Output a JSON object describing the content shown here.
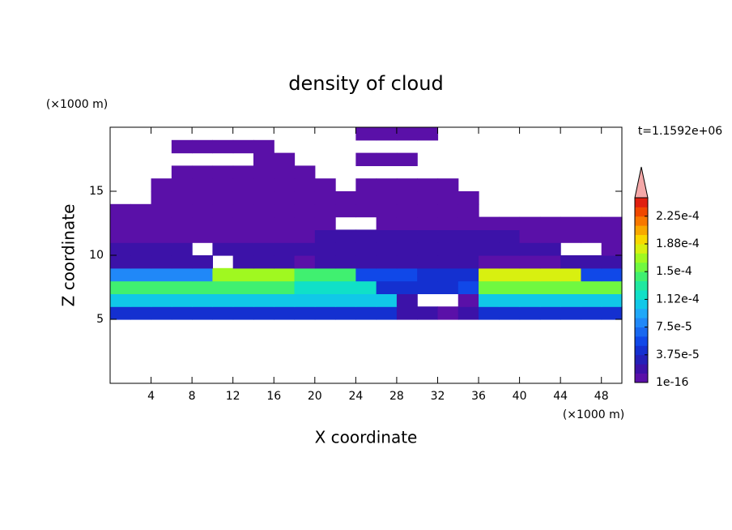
{
  "chart_data": {
    "type": "contour",
    "title": "density of cloud",
    "x_label": "X coordinate",
    "y_label": "Z coordinate",
    "x_unit": "(×1000 m)",
    "y_unit": "(×1000 m)",
    "annotation": "t=1.1592e+06",
    "xlim": [
      0,
      50
    ],
    "ylim": [
      0,
      20
    ],
    "xticks": [
      4,
      8,
      12,
      16,
      20,
      24,
      28,
      32,
      36,
      40,
      44,
      48
    ],
    "yticks": [
      5,
      10,
      15
    ],
    "x": [
      1,
      3,
      5,
      7,
      9,
      11,
      13,
      15,
      17,
      19,
      21,
      23,
      25,
      27,
      29,
      31,
      33,
      35,
      37,
      39,
      41,
      43,
      45,
      47,
      49
    ],
    "z": [
      0.5,
      1.5,
      2.5,
      3.5,
      4.5,
      5.5,
      6.5,
      7.5,
      8.5,
      9.5,
      10.5,
      11.5,
      12.5,
      13.5,
      14.5,
      15.5,
      16.5,
      17.5,
      18.5,
      19.5
    ],
    "values": [
      [
        null,
        null,
        null,
        null,
        null,
        null,
        null,
        null,
        null,
        null,
        null,
        null,
        null,
        null,
        null,
        null,
        null,
        null,
        null,
        null,
        null,
        null,
        null,
        null,
        null
      ],
      [
        null,
        null,
        null,
        null,
        null,
        null,
        null,
        null,
        null,
        null,
        null,
        null,
        null,
        null,
        null,
        null,
        null,
        null,
        null,
        null,
        null,
        null,
        null,
        null,
        null
      ],
      [
        null,
        null,
        null,
        null,
        null,
        null,
        null,
        null,
        null,
        null,
        null,
        null,
        null,
        null,
        null,
        null,
        null,
        null,
        null,
        null,
        null,
        null,
        null,
        null,
        null
      ],
      [
        null,
        null,
        null,
        null,
        null,
        null,
        null,
        null,
        null,
        null,
        null,
        null,
        null,
        null,
        null,
        null,
        null,
        null,
        null,
        null,
        null,
        null,
        null,
        null,
        null
      ],
      [
        null,
        null,
        null,
        null,
        null,
        null,
        null,
        null,
        null,
        null,
        null,
        null,
        null,
        null,
        null,
        null,
        null,
        null,
        null,
        null,
        null,
        null,
        null,
        null,
        null
      ],
      [
        4e-05,
        4e-05,
        4e-05,
        4e-05,
        4e-05,
        4e-05,
        4e-05,
        4e-05,
        4e-05,
        4e-05,
        4e-05,
        4e-05,
        4e-05,
        4e-05,
        2e-05,
        2e-05,
        5e-06,
        2e-05,
        4e-05,
        4e-05,
        4e-05,
        4e-05,
        4e-05,
        4e-05,
        4e-05
      ],
      [
        0.0001,
        0.0001,
        0.0001,
        0.0001,
        0.0001,
        0.0001,
        0.0001,
        0.0001,
        0.0001,
        0.0001,
        0.0001,
        0.0001,
        0.0001,
        0.0001,
        2e-05,
        null,
        null,
        5e-06,
        0.0001,
        0.0001,
        0.0001,
        0.0001,
        0.0001,
        0.0001,
        0.0001
      ],
      [
        0.00014,
        0.00014,
        0.00014,
        0.00014,
        0.00014,
        0.00014,
        0.00014,
        0.00014,
        0.00014,
        0.00012,
        0.00012,
        0.00012,
        0.00012,
        4e-05,
        4e-05,
        4e-05,
        4e-05,
        6e-05,
        0.00015,
        0.00015,
        0.00015,
        0.00015,
        0.00015,
        0.00015,
        0.00015
      ],
      [
        8e-05,
        8e-05,
        8e-05,
        8e-05,
        8e-05,
        0.00017,
        0.00017,
        0.00017,
        0.00017,
        0.00014,
        0.00014,
        0.00014,
        6e-05,
        6e-05,
        6e-05,
        4e-05,
        4e-05,
        4e-05,
        0.00018,
        0.00018,
        0.00018,
        0.00018,
        0.00018,
        6e-05,
        6e-05
      ],
      [
        2e-05,
        2e-05,
        2e-05,
        2e-05,
        2e-05,
        null,
        2e-05,
        2e-05,
        2e-05,
        5e-06,
        2e-05,
        2e-05,
        2e-05,
        2e-05,
        2e-05,
        2e-05,
        2e-05,
        2e-05,
        5e-06,
        5e-06,
        5e-06,
        5e-06,
        2e-05,
        2e-05,
        2e-05
      ],
      [
        2e-05,
        2e-05,
        2e-05,
        2e-05,
        null,
        2e-05,
        2e-05,
        2e-05,
        2e-05,
        2e-05,
        2e-05,
        2e-05,
        2e-05,
        2e-05,
        2e-05,
        2e-05,
        2e-05,
        2e-05,
        2e-05,
        2e-05,
        2e-05,
        2e-05,
        null,
        null,
        5e-06
      ],
      [
        5e-06,
        5e-06,
        5e-06,
        5e-06,
        5e-06,
        5e-06,
        5e-06,
        5e-06,
        5e-06,
        5e-06,
        2e-05,
        2e-05,
        2e-05,
        2e-05,
        2e-05,
        2e-05,
        2e-05,
        2e-05,
        2e-05,
        2e-05,
        5e-06,
        5e-06,
        5e-06,
        5e-06,
        5e-06
      ],
      [
        5e-06,
        5e-06,
        5e-06,
        5e-06,
        5e-06,
        5e-06,
        5e-06,
        5e-06,
        5e-06,
        5e-06,
        5e-06,
        null,
        null,
        5e-06,
        5e-06,
        5e-06,
        5e-06,
        5e-06,
        5e-06,
        5e-06,
        5e-06,
        5e-06,
        5e-06,
        5e-06,
        5e-06
      ],
      [
        5e-06,
        5e-06,
        5e-06,
        5e-06,
        5e-06,
        5e-06,
        5e-06,
        5e-06,
        5e-06,
        5e-06,
        5e-06,
        5e-06,
        5e-06,
        5e-06,
        5e-06,
        5e-06,
        5e-06,
        5e-06,
        null,
        null,
        null,
        null,
        null,
        null,
        null
      ],
      [
        null,
        null,
        5e-06,
        5e-06,
        5e-06,
        5e-06,
        5e-06,
        5e-06,
        5e-06,
        5e-06,
        5e-06,
        5e-06,
        5e-06,
        5e-06,
        5e-06,
        5e-06,
        5e-06,
        5e-06,
        null,
        null,
        null,
        null,
        null,
        null,
        null
      ],
      [
        null,
        null,
        5e-06,
        5e-06,
        5e-06,
        5e-06,
        5e-06,
        5e-06,
        5e-06,
        5e-06,
        5e-06,
        null,
        5e-06,
        5e-06,
        5e-06,
        5e-06,
        5e-06,
        null,
        null,
        null,
        null,
        null,
        null,
        null,
        null
      ],
      [
        null,
        null,
        null,
        5e-06,
        5e-06,
        5e-06,
        5e-06,
        5e-06,
        5e-06,
        5e-06,
        null,
        null,
        null,
        null,
        null,
        null,
        null,
        null,
        null,
        null,
        null,
        null,
        null,
        null,
        null
      ],
      [
        null,
        null,
        null,
        null,
        null,
        null,
        null,
        5e-06,
        5e-06,
        null,
        null,
        null,
        5e-06,
        5e-06,
        5e-06,
        null,
        null,
        null,
        null,
        null,
        null,
        null,
        null,
        null,
        null
      ],
      [
        null,
        null,
        null,
        5e-06,
        5e-06,
        5e-06,
        5e-06,
        5e-06,
        null,
        null,
        null,
        null,
        null,
        null,
        null,
        null,
        null,
        null,
        null,
        null,
        null,
        null,
        null,
        null,
        null
      ],
      [
        null,
        null,
        null,
        null,
        null,
        null,
        null,
        null,
        null,
        null,
        null,
        null,
        5e-06,
        5e-06,
        5e-06,
        5e-06,
        null,
        null,
        null,
        null,
        null,
        null,
        null,
        null,
        null
      ]
    ],
    "colorbar": {
      "clim": [
        1e-16,
        0.00025
      ],
      "levels": [
        1e-16,
        1.25e-05,
        2.5e-05,
        3.75e-05,
        5e-05,
        6.25e-05,
        7.5e-05,
        8.75e-05,
        0.0001,
        0.0001125,
        0.000125,
        0.0001375,
        0.00015,
        0.0001625,
        0.000175,
        0.0001875,
        0.0002,
        0.0002125,
        0.000225,
        0.0002375
      ],
      "colors": [
        "#5a10a8",
        "#3c12a8",
        "#2420b8",
        "#1430d0",
        "#1048e8",
        "#1868f0",
        "#2088f8",
        "#20a8f8",
        "#10c8e8",
        "#10e0c8",
        "#20e8a0",
        "#40f070",
        "#70f840",
        "#a0f820",
        "#d8f010",
        "#f8d800",
        "#f8a800",
        "#f87800",
        "#f04800",
        "#e02010"
      ],
      "over_color": "#f4a8a8",
      "ticks": [
        {
          "value": 1e-16,
          "label": "1e-16"
        },
        {
          "value": 3.75e-05,
          "label": "3.75e-5"
        },
        {
          "value": 7.5e-05,
          "label": "7.5e-5"
        },
        {
          "value": 0.0001125,
          "label": "1.12e-4"
        },
        {
          "value": 0.00015,
          "label": "1.5e-4"
        },
        {
          "value": 0.0001875,
          "label": "1.88e-4"
        },
        {
          "value": 0.000225,
          "label": "2.25e-4"
        }
      ]
    }
  }
}
